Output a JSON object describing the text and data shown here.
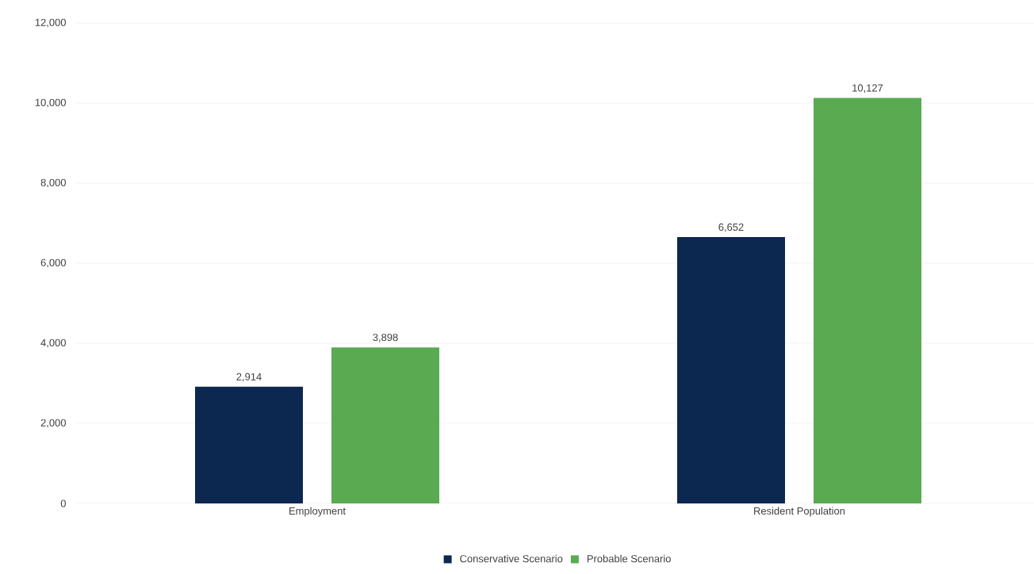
{
  "chart_data": {
    "type": "bar",
    "categories": [
      "Employment",
      "Resident Population"
    ],
    "series": [
      {
        "name": "Conservative Scenario",
        "color": "#0c2850",
        "values": [
          2914,
          6652
        ],
        "value_labels": [
          "2,914",
          "6,652"
        ]
      },
      {
        "name": "Probable Scenario",
        "color": "#5aaa52",
        "values": [
          3898,
          10127
        ],
        "value_labels": [
          "3,898",
          "10,127"
        ]
      }
    ],
    "ylim": [
      0,
      12000
    ],
    "yticks": [
      {
        "value": 0,
        "label": "0"
      },
      {
        "value": 2000,
        "label": "2,000"
      },
      {
        "value": 4000,
        "label": "4,000"
      },
      {
        "value": 6000,
        "label": "6,000"
      },
      {
        "value": 8000,
        "label": "8,000"
      },
      {
        "value": 10000,
        "label": "10,000"
      },
      {
        "value": 12000,
        "label": "12,000"
      }
    ],
    "grid": "y",
    "legend": "bottom"
  }
}
